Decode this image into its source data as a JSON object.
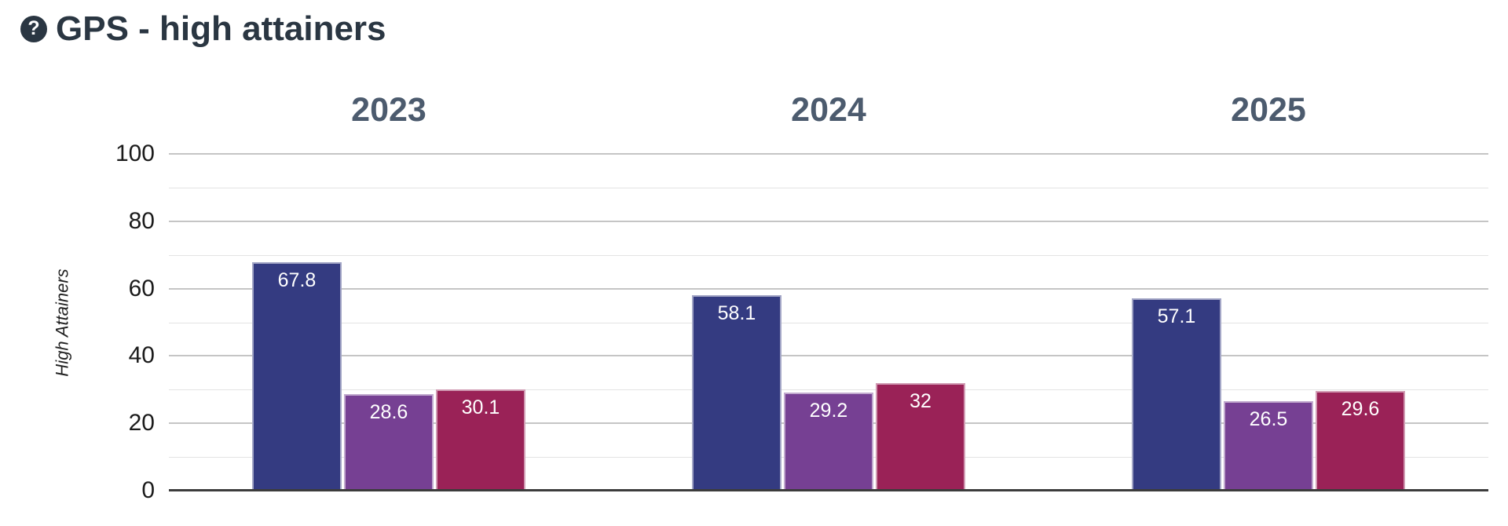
{
  "header": {
    "help_icon": "?",
    "title": "GPS - high attainers"
  },
  "chart_data": {
    "type": "bar",
    "title": "GPS - high attainers",
    "xlabel": "",
    "ylabel": "High Attainers",
    "ylim": [
      0,
      100
    ],
    "yticks": [
      0,
      20,
      40,
      60,
      80,
      100
    ],
    "gridline_step": 10,
    "grid": "horizontal",
    "legend": "none",
    "categories": [
      "2023",
      "2024",
      "2025"
    ],
    "series": [
      {
        "name": "navy",
        "color": "#343b81",
        "values": [
          67.8,
          58.1,
          57.1
        ]
      },
      {
        "name": "purple",
        "color": "#764093",
        "values": [
          28.6,
          29.2,
          26.5
        ]
      },
      {
        "name": "crimson",
        "color": "#9a2257",
        "values": [
          30.1,
          32,
          29.6
        ]
      }
    ]
  },
  "colors": {
    "title_text": "#2a3642",
    "category_header_text": "#4c5b6e",
    "axis_tick_text": "#1b1b1b",
    "gridline_major": "#c5c5c5",
    "gridline_minor": "#e3e3e3",
    "axis_baseline": "#3c3c3c",
    "value_label_text": "#ffffff",
    "background": "#ffffff"
  }
}
